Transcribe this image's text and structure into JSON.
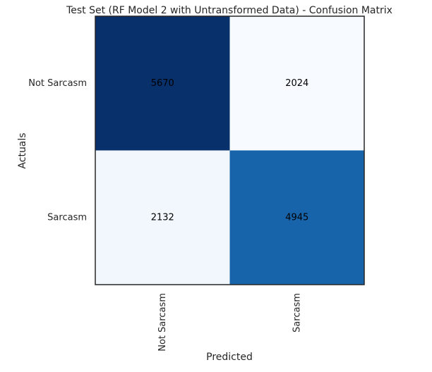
{
  "chart_data": {
    "type": "heatmap",
    "title": "Test Set (RF Model 2 with Untransformed Data) - Confusion Matrix",
    "xlabel": "Predicted",
    "ylabel": "Actuals",
    "x_categories": [
      "Not Sarcasm",
      "Sarcasm"
    ],
    "y_categories": [
      "Not Sarcasm",
      "Sarcasm"
    ],
    "values": [
      [
        5670,
        2024
      ],
      [
        2132,
        4945
      ]
    ],
    "colormap": "Blues",
    "value_range": [
      2024,
      5670
    ],
    "grid": false,
    "colors": {
      "low": "#f7fbff",
      "high": "#08306b",
      "text": "#000000",
      "frame": "#262626"
    }
  }
}
